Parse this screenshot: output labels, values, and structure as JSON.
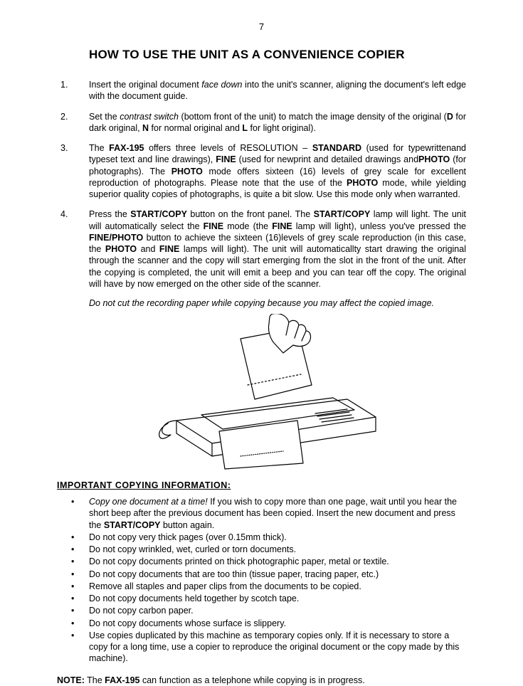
{
  "page_number": "7",
  "title": "HOW TO USE THE UNIT AS A CONVENIENCE COPIER",
  "steps": [
    {
      "parts": [
        {
          "t": "Insert the original document "
        },
        {
          "t": "face down",
          "i": true
        },
        {
          "t": " into the unit's scanner, aligning the document's left edge with the document guide."
        }
      ]
    },
    {
      "parts": [
        {
          "t": "Set the "
        },
        {
          "t": "contrast switch",
          "i": true
        },
        {
          "t": " (bottom front of the unit) to match the image density of the original ("
        },
        {
          "t": "D",
          "b": true
        },
        {
          "t": " for dark original, "
        },
        {
          "t": "N",
          "b": true
        },
        {
          "t": " for normal original and "
        },
        {
          "t": "L",
          "b": true
        },
        {
          "t": " for light original)."
        }
      ]
    },
    {
      "parts": [
        {
          "t": "The "
        },
        {
          "t": "FAX-195",
          "b": true
        },
        {
          "t": " offers three levels of RESOLUTION – "
        },
        {
          "t": "STANDARD",
          "b": true
        },
        {
          "t": " (used for typewrittenand typeset text and line drawings), "
        },
        {
          "t": "FINE",
          "b": true
        },
        {
          "t": " (used for newprint and detailed drawings and"
        },
        {
          "t": "PHOTO",
          "b": true
        },
        {
          "t": " (for photographs).  The "
        },
        {
          "t": "PHOTO",
          "b": true
        },
        {
          "t": " mode offers sixteen (16) levels of grey scale for excellent reproduction of photographs.  Please note that the use of the "
        },
        {
          "t": "PHOTO",
          "b": true
        },
        {
          "t": " mode, while yielding superior quality copies of photographs, is quite a bit slow.  Use this mode only when warranted."
        }
      ]
    },
    {
      "parts": [
        {
          "t": "Press the "
        },
        {
          "t": "START/COPY",
          "b": true
        },
        {
          "t": " button on the front panel.  The "
        },
        {
          "t": "START/COPY",
          "b": true
        },
        {
          "t": " lamp will light.  The unit will automatically select the "
        },
        {
          "t": "FINE",
          "b": true
        },
        {
          "t": " mode (the "
        },
        {
          "t": "FINE",
          "b": true
        },
        {
          "t": " lamp will light), unless you've pressed the "
        },
        {
          "t": "FINE/PHOTO",
          "b": true
        },
        {
          "t": " button to achieve the sixteen (16)levels of grey scale reproduction (in this case, the "
        },
        {
          "t": "PHOTO",
          "b": true
        },
        {
          "t": " and "
        },
        {
          "t": "FINE",
          "b": true
        },
        {
          "t": " lamps will light). The unit will automaticallty start drawing the original through the scanner and the copy will start emerging from the slot in the front of the unit.  After the copying is completed, the unit will emit a beep and you can tear off the copy.  The original will have by now emerged on the other side of the scanner."
        }
      ]
    }
  ],
  "italic_warning": "Do not cut the recording paper while copying because you may affect the copied image.",
  "important_heading": "IMPORTANT  COPYING  INFORMATION:",
  "bullets": [
    {
      "parts": [
        {
          "t": "Copy one document at a time!",
          "i": true
        },
        {
          "t": "  If you wish to copy more than one page, wait until you hear the short beep after the previous document has been copied.  Insert the new document and press the "
        },
        {
          "t": "START/COPY",
          "b": true
        },
        {
          "t": " button again."
        }
      ]
    },
    {
      "parts": [
        {
          "t": "Do not copy very thick pages (over 0.15mm thick)."
        }
      ]
    },
    {
      "parts": [
        {
          "t": "Do not copy wrinkled, wet, curled or torn documents."
        }
      ]
    },
    {
      "parts": [
        {
          "t": "Do not  copy documents printed on thick photographic paper, metal or textile."
        }
      ]
    },
    {
      "parts": [
        {
          "t": "Do not copy documents that are too thin (tissue paper, tracing paper, etc.)"
        }
      ]
    },
    {
      "parts": [
        {
          "t": "Remove all staples and paper clips from the documents to be copied."
        }
      ]
    },
    {
      "parts": [
        {
          "t": "Do not  copy documents held together by scotch tape."
        }
      ]
    },
    {
      "parts": [
        {
          "t": "Do not copy carbon paper."
        }
      ]
    },
    {
      "parts": [
        {
          "t": "Do not copy documents whose surface is slippery."
        }
      ]
    },
    {
      "parts": [
        {
          "t": "Use copies duplicated by this machine as temporary copies only.  If it is necessary to store a copy for a long time, use a copier to reproduce the original document or the copy made by this machine)."
        }
      ]
    }
  ],
  "note": {
    "label": "NOTE:",
    "parts": [
      {
        "t": " The "
      },
      {
        "t": "FAX-195",
        "b": true
      },
      {
        "t": " can function as a telephone while copying is in progress."
      }
    ]
  },
  "figure_stroke": "#000000",
  "figure_fill": "#ffffff"
}
